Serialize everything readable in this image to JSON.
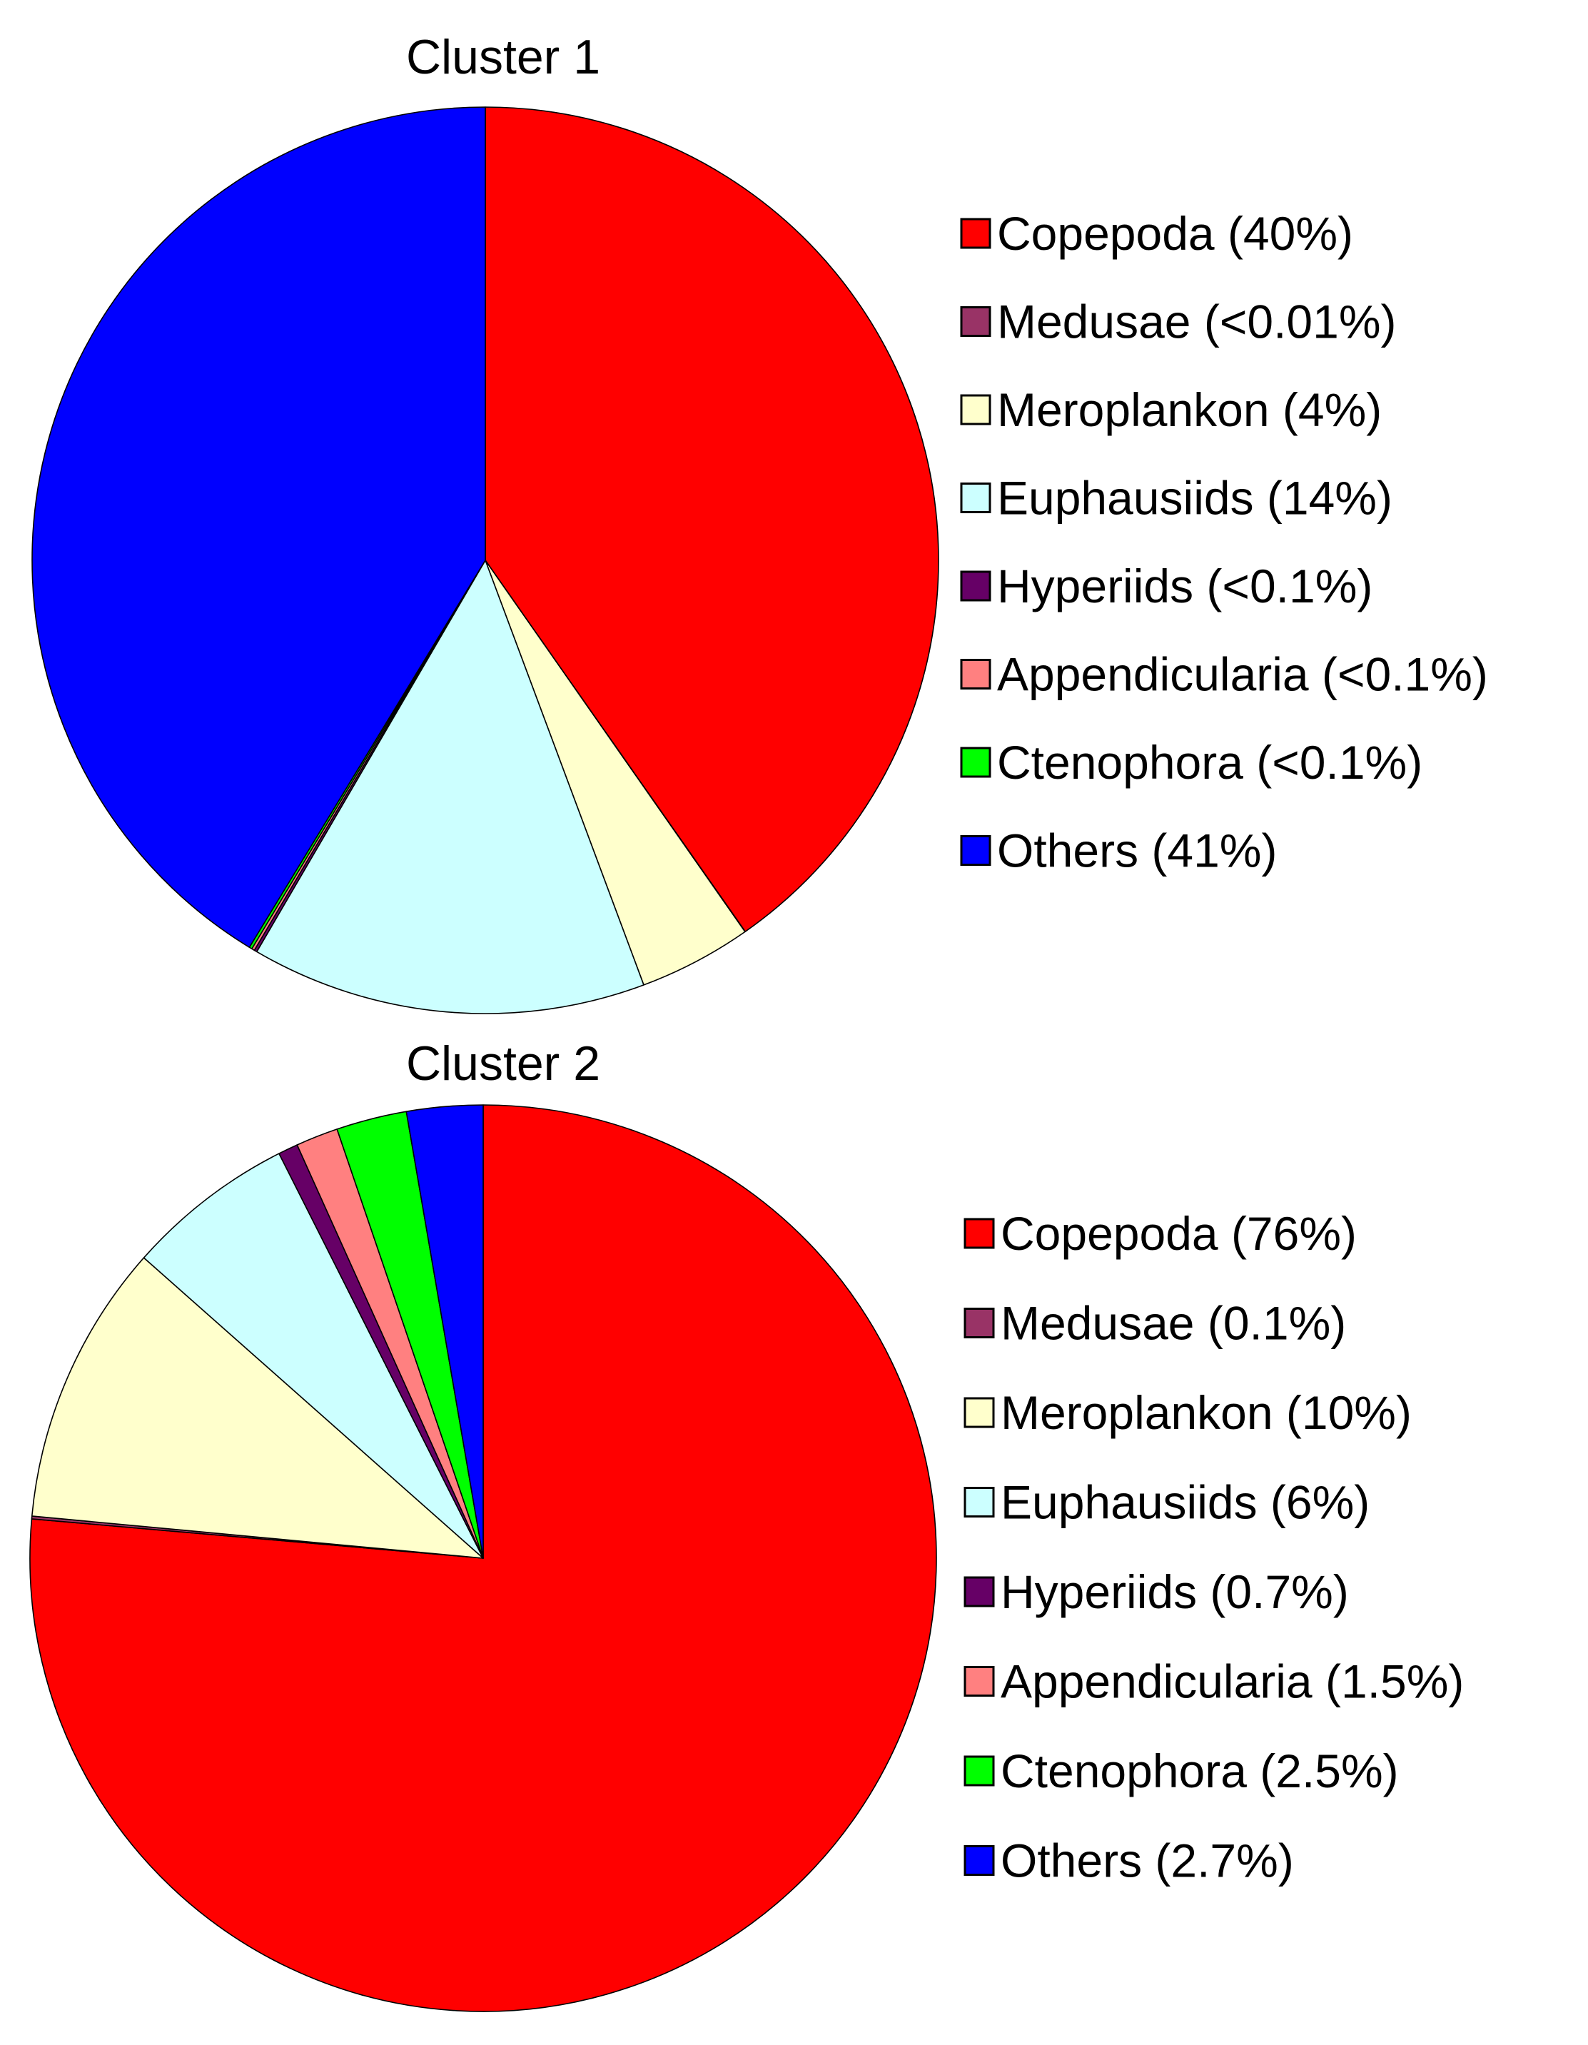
{
  "chart_data": [
    {
      "type": "pie",
      "title": "Cluster 1",
      "legend_position": "right",
      "series": [
        {
          "name": "Copepoda",
          "label": "Copepoda (40%)",
          "value": 40,
          "color": "#FF0000"
        },
        {
          "name": "Medusae",
          "label": "Medusae (<0.01%)",
          "value": 0.01,
          "color": "#993366"
        },
        {
          "name": "Meroplankon",
          "label": "Meroplankon (4%)",
          "value": 4,
          "color": "#FFFFCC"
        },
        {
          "name": "Euphausiids",
          "label": "Euphausiids (14%)",
          "value": 14,
          "color": "#CCFFFF"
        },
        {
          "name": "Hyperiids",
          "label": "Hyperiids (<0.1%)",
          "value": 0.1,
          "color": "#660066"
        },
        {
          "name": "Appendicularia",
          "label": "Appendicularia (<0.1%)",
          "value": 0.1,
          "color": "#FF8080"
        },
        {
          "name": "Ctenophora",
          "label": "Ctenophora (<0.1%)",
          "value": 0.1,
          "color": "#00FF00"
        },
        {
          "name": "Others",
          "label": "Others (41%)",
          "value": 41,
          "color": "#0000FF"
        }
      ]
    },
    {
      "type": "pie",
      "title": "Cluster 2",
      "legend_position": "right",
      "series": [
        {
          "name": "Copepoda",
          "label": "Copepoda (76%)",
          "value": 76,
          "color": "#FF0000"
        },
        {
          "name": "Medusae",
          "label": "Medusae (0.1%)",
          "value": 0.1,
          "color": "#993366"
        },
        {
          "name": "Meroplankon",
          "label": "Meroplankon (10%)",
          "value": 10,
          "color": "#FFFFCC"
        },
        {
          "name": "Euphausiids",
          "label": "Euphausiids (6%)",
          "value": 6,
          "color": "#CCFFFF"
        },
        {
          "name": "Hyperiids",
          "label": "Hyperiids (0.7%)",
          "value": 0.7,
          "color": "#660066"
        },
        {
          "name": "Appendicularia",
          "label": "Appendicularia (1.5%)",
          "value": 1.5,
          "color": "#FF8080"
        },
        {
          "name": "Ctenophora",
          "label": "Ctenophora (2.5%)",
          "value": 2.5,
          "color": "#00FF00"
        },
        {
          "name": "Others",
          "label": "Others (2.7%)",
          "value": 2.7,
          "color": "#0000FF"
        }
      ]
    }
  ]
}
